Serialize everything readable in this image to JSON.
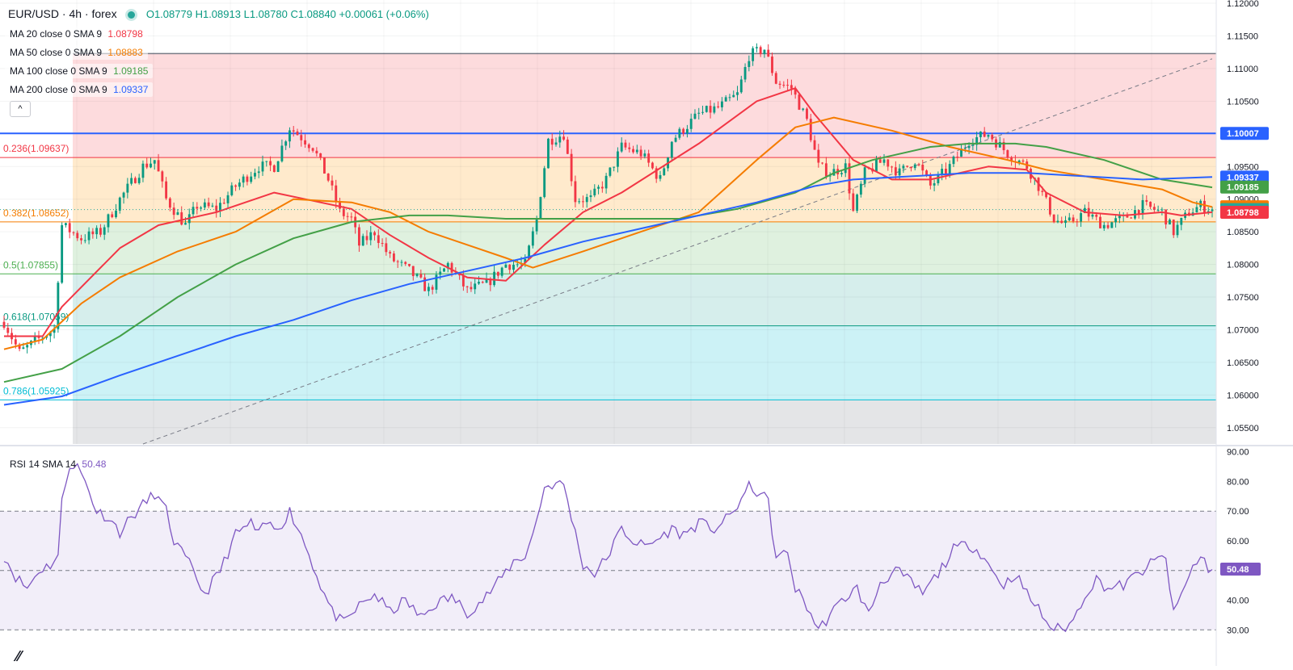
{
  "header": {
    "symbol": "EUR/USD · 4h · forex",
    "open": "O1.08779",
    "high": "H1.08913",
    "low": "L1.08780",
    "close": "C1.08840",
    "change": "+0.00061 (+0.06%)"
  },
  "ma_legend": [
    {
      "label": "MA 20 close 0 SMA 9",
      "value": "1.08798",
      "color": "#f23645"
    },
    {
      "label": "MA 50 close 0 SMA 9",
      "value": "1.08883",
      "color": "#f57c00"
    },
    {
      "label": "MA 100 close 0 SMA 9",
      "value": "1.09185",
      "color": "#43a047"
    },
    {
      "label": "MA 200 close 0 SMA 9",
      "value": "1.09337",
      "color": "#2962ff"
    }
  ],
  "collapse_glyph": "^",
  "rsi_legend": {
    "label": "RSI 14 SMA 14",
    "value": "50.48",
    "color": "#7e57c2"
  },
  "chart_data": {
    "type": "candlestick",
    "symbol": "EUR/USD",
    "timeframe": "4h",
    "price_axis": {
      "ylim": [
        1.0525,
        1.1205
      ],
      "ticks": [
        "1.12000",
        "1.11500",
        "1.11000",
        "1.10500",
        "1.10000",
        "1.09500",
        "1.09000",
        "1.08500",
        "1.08000",
        "1.07500",
        "1.07000",
        "1.06500",
        "1.06000",
        "1.05500"
      ]
    },
    "price_key_points": [
      [
        0,
        1.0712
      ],
      [
        4,
        1.0665
      ],
      [
        10,
        1.069
      ],
      [
        13,
        1.07
      ],
      [
        15,
        1.086
      ],
      [
        20,
        1.084
      ],
      [
        25,
        1.085
      ],
      [
        30,
        1.09
      ],
      [
        36,
        1.095
      ],
      [
        39,
        1.096
      ],
      [
        42,
        1.09
      ],
      [
        47,
        1.086
      ],
      [
        50,
        1.089
      ],
      [
        55,
        1.0885
      ],
      [
        60,
        1.092
      ],
      [
        66,
        1.095
      ],
      [
        70,
        1.095
      ],
      [
        74,
        1.101
      ],
      [
        80,
        1.098
      ],
      [
        84,
        1.093
      ],
      [
        87,
        1.088
      ],
      [
        90,
        1.087
      ],
      [
        92,
        1.083
      ],
      [
        96,
        1.085
      ],
      [
        100,
        1.081
      ],
      [
        105,
        1.079
      ],
      [
        110,
        1.076
      ],
      [
        115,
        1.08
      ],
      [
        120,
        1.076
      ],
      [
        125,
        1.077
      ],
      [
        130,
        1.08
      ],
      [
        135,
        1.08
      ],
      [
        138,
        1.087
      ],
      [
        141,
        1.099
      ],
      [
        145,
        1.1
      ],
      [
        148,
        1.09
      ],
      [
        152,
        1.09
      ],
      [
        156,
        1.093
      ],
      [
        160,
        1.098
      ],
      [
        165,
        1.097
      ],
      [
        170,
        1.093
      ],
      [
        173,
        1.099
      ],
      [
        180,
        1.103
      ],
      [
        185,
        1.104
      ],
      [
        190,
        1.106
      ],
      [
        193,
        1.112
      ],
      [
        197,
        1.113
      ],
      [
        200,
        1.108
      ],
      [
        204,
        1.107
      ],
      [
        208,
        1.102
      ],
      [
        211,
        1.095
      ],
      [
        214,
        1.094
      ],
      [
        218,
        1.095
      ],
      [
        220,
        1.088
      ],
      [
        223,
        1.094
      ],
      [
        228,
        1.096
      ],
      [
        232,
        1.094
      ],
      [
        236,
        1.096
      ],
      [
        240,
        1.092
      ],
      [
        245,
        1.095
      ],
      [
        250,
        1.099
      ],
      [
        255,
        1.1
      ],
      [
        260,
        1.097
      ],
      [
        265,
        1.095
      ],
      [
        268,
        1.092
      ],
      [
        272,
        1.087
      ],
      [
        275,
        1.086
      ],
      [
        280,
        1.088
      ],
      [
        285,
        1.086
      ],
      [
        290,
        1.087
      ],
      [
        295,
        1.089
      ],
      [
        300,
        1.088
      ],
      [
        303,
        1.085
      ],
      [
        307,
        1.088
      ],
      [
        310,
        1.089
      ],
      [
        313,
        1.0884
      ]
    ],
    "moving_averages": [
      {
        "name": "MA 20",
        "color": "#f23645",
        "x": [
          0,
          10,
          15,
          30,
          40,
          55,
          70,
          90,
          100,
          110,
          120,
          130,
          140,
          150,
          160,
          180,
          195,
          205,
          210,
          220,
          230,
          240,
          255,
          265,
          270,
          280,
          290,
          300,
          305,
          313
        ],
        "y": [
          1.069,
          1.069,
          1.0735,
          1.0825,
          1.086,
          1.088,
          1.091,
          1.0885,
          1.0845,
          1.081,
          1.078,
          1.0775,
          1.083,
          1.088,
          1.091,
          1.0985,
          1.105,
          1.107,
          1.103,
          1.096,
          1.093,
          1.093,
          1.095,
          1.0945,
          1.091,
          1.088,
          1.0875,
          1.088,
          1.0875,
          1.088
        ]
      },
      {
        "name": "MA 50",
        "color": "#f57c00",
        "x": [
          0,
          10,
          20,
          30,
          45,
          60,
          75,
          90,
          100,
          110,
          120,
          130,
          137,
          150,
          165,
          180,
          195,
          205,
          215,
          230,
          245,
          260,
          270,
          285,
          300,
          308,
          313
        ],
        "y": [
          1.067,
          1.0685,
          1.074,
          1.078,
          1.082,
          1.085,
          1.09,
          1.0895,
          1.088,
          1.085,
          1.083,
          1.081,
          1.0795,
          1.082,
          1.085,
          1.088,
          1.096,
          1.101,
          1.1025,
          1.1005,
          1.098,
          1.096,
          1.0945,
          1.093,
          1.0915,
          1.0895,
          1.0888
        ]
      },
      {
        "name": "MA 100",
        "color": "#43a047",
        "x": [
          0,
          15,
          30,
          45,
          60,
          75,
          90,
          105,
          115,
          130,
          145,
          160,
          175,
          190,
          205,
          215,
          225,
          240,
          250,
          262,
          270,
          285,
          300,
          313
        ],
        "y": [
          1.062,
          1.064,
          1.069,
          1.075,
          1.08,
          1.084,
          1.0865,
          1.0875,
          1.0875,
          1.087,
          1.087,
          1.087,
          1.087,
          1.0885,
          1.091,
          1.094,
          1.096,
          1.098,
          1.0985,
          1.0985,
          1.098,
          1.096,
          1.093,
          1.0918
        ]
      },
      {
        "name": "MA 200",
        "color": "#2962ff",
        "x": [
          0,
          15,
          30,
          45,
          60,
          75,
          90,
          105,
          120,
          135,
          150,
          165,
          180,
          195,
          210,
          220,
          235,
          250,
          265,
          280,
          295,
          313
        ],
        "y": [
          1.0585,
          1.0598,
          1.063,
          1.066,
          1.069,
          1.0715,
          1.0745,
          1.077,
          1.079,
          1.081,
          1.0835,
          1.0855,
          1.0875,
          1.0895,
          1.092,
          1.093,
          1.0935,
          1.094,
          1.094,
          1.0935,
          1.093,
          1.0934
        ]
      }
    ],
    "fibonacci": {
      "levels": [
        {
          "label": "0.236(1.09637)",
          "value": 1.09637,
          "color": "#f23645"
        },
        {
          "label": "0.382(1.08652)",
          "value": 1.08652,
          "color": "#f57c00"
        },
        {
          "label": "0.5(1.07855)",
          "value": 1.07855,
          "color": "#4caf50"
        },
        {
          "label": "0.618(1.07059)",
          "value": 1.07059,
          "color": "#089981"
        },
        {
          "label": "0.786(1.05925)",
          "value": 1.05925,
          "color": "#00bcd4"
        }
      ],
      "top_value": 1.1123,
      "zones": [
        {
          "from": 1.1123,
          "to": 1.09637,
          "color": "rgba(242,54,69,0.18)"
        },
        {
          "from": 1.09637,
          "to": 1.08652,
          "color": "rgba(255,152,0,0.20)"
        },
        {
          "from": 1.08652,
          "to": 1.07855,
          "color": "rgba(76,175,80,0.18)"
        },
        {
          "from": 1.07855,
          "to": 1.07059,
          "color": "rgba(0,150,136,0.16)"
        },
        {
          "from": 1.07059,
          "to": 1.05925,
          "color": "rgba(0,188,212,0.20)"
        },
        {
          "from": 1.05925,
          "to": 1.0525,
          "color": "rgba(120,123,134,0.20)"
        }
      ]
    },
    "horizontal_line": {
      "value": 1.10007,
      "color": "#2962ff"
    },
    "trend_line": {
      "from": [
        1.0525,
        36
      ],
      "to": [
        1.1115,
        313
      ]
    },
    "price_badges": [
      {
        "text": "1.10007",
        "value": 1.10007,
        "bg": "#2962ff"
      },
      {
        "text": "1.09337",
        "value": 1.09337,
        "bg": "#2962ff"
      },
      {
        "text": "1.09185",
        "value": 1.09185,
        "bg": "#43a047"
      },
      {
        "text": "1.08883",
        "value": 1.08883,
        "bg": "#f57c00"
      },
      {
        "text": "1.08840",
        "value": 1.0884,
        "bg": "#26a69a"
      },
      {
        "text": "1.08798",
        "value": 1.08798,
        "bg": "#f23645"
      }
    ],
    "rsi": {
      "ylim": [
        26,
        91
      ],
      "ticks": [
        "90.00",
        "80.00",
        "70.00",
        "60.00",
        "40.00",
        "30.00"
      ],
      "band": [
        30,
        70
      ],
      "mid": 50,
      "value": 50.48,
      "badge": "50.48",
      "key_points": [
        [
          0,
          55
        ],
        [
          3,
          48
        ],
        [
          6,
          44
        ],
        [
          9,
          50
        ],
        [
          12,
          52
        ],
        [
          14,
          55
        ],
        [
          15,
          73
        ],
        [
          17,
          86
        ],
        [
          19,
          85
        ],
        [
          21,
          80
        ],
        [
          24,
          70
        ],
        [
          27,
          68
        ],
        [
          30,
          63
        ],
        [
          33,
          68
        ],
        [
          36,
          72
        ],
        [
          39,
          76
        ],
        [
          42,
          70
        ],
        [
          44,
          60
        ],
        [
          48,
          52
        ],
        [
          52,
          42
        ],
        [
          56,
          50
        ],
        [
          60,
          62
        ],
        [
          64,
          66
        ],
        [
          66,
          62
        ],
        [
          68,
          66
        ],
        [
          70,
          64
        ],
        [
          72,
          66
        ],
        [
          74,
          70
        ],
        [
          77,
          62
        ],
        [
          80,
          52
        ],
        [
          82,
          45
        ],
        [
          85,
          36
        ],
        [
          88,
          32
        ],
        [
          92,
          38
        ],
        [
          96,
          42
        ],
        [
          100,
          36
        ],
        [
          104,
          40
        ],
        [
          108,
          34
        ],
        [
          112,
          39
        ],
        [
          116,
          41
        ],
        [
          120,
          36
        ],
        [
          124,
          40
        ],
        [
          128,
          46
        ],
        [
          132,
          53
        ],
        [
          135,
          55
        ],
        [
          137,
          62
        ],
        [
          140,
          78
        ],
        [
          142,
          79
        ],
        [
          145,
          79
        ],
        [
          147,
          68
        ],
        [
          150,
          52
        ],
        [
          153,
          49
        ],
        [
          156,
          54
        ],
        [
          160,
          64
        ],
        [
          163,
          60
        ],
        [
          166,
          58
        ],
        [
          170,
          61
        ],
        [
          173,
          64
        ],
        [
          176,
          62
        ],
        [
          180,
          66
        ],
        [
          184,
          64
        ],
        [
          188,
          68
        ],
        [
          191,
          74
        ],
        [
          193,
          78
        ],
        [
          196,
          76
        ],
        [
          198,
          73
        ],
        [
          200,
          54
        ],
        [
          203,
          56
        ],
        [
          205,
          44
        ],
        [
          208,
          38
        ],
        [
          211,
          30
        ],
        [
          214,
          35
        ],
        [
          218,
          41
        ],
        [
          221,
          44
        ],
        [
          224,
          35
        ],
        [
          227,
          46
        ],
        [
          231,
          50
        ],
        [
          235,
          46
        ],
        [
          238,
          42
        ],
        [
          242,
          49
        ],
        [
          246,
          57
        ],
        [
          250,
          59
        ],
        [
          253,
          56
        ],
        [
          256,
          50
        ],
        [
          259,
          45
        ],
        [
          262,
          49
        ],
        [
          265,
          42
        ],
        [
          268,
          37
        ],
        [
          271,
          31
        ],
        [
          274,
          30
        ],
        [
          277,
          33
        ],
        [
          280,
          42
        ],
        [
          283,
          47
        ],
        [
          286,
          44
        ],
        [
          290,
          45
        ],
        [
          294,
          49
        ],
        [
          298,
          53
        ],
        [
          301,
          55
        ],
        [
          302,
          44
        ],
        [
          303,
          35
        ],
        [
          305,
          42
        ],
        [
          308,
          51
        ],
        [
          310,
          55
        ],
        [
          312,
          51
        ],
        [
          313,
          50.48
        ]
      ]
    },
    "candle_count": 314
  }
}
